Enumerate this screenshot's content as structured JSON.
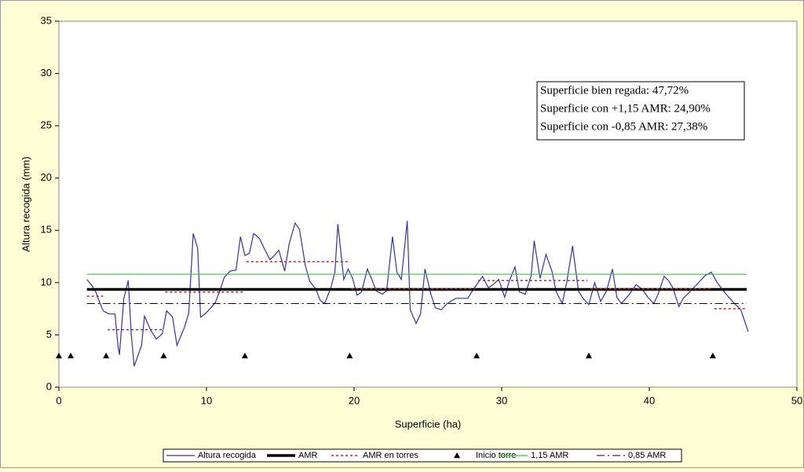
{
  "chart_data": {
    "type": "line",
    "xlabel": "Superficie (ha)",
    "ylabel": "Altura recogida (mm)",
    "xlim": [
      0,
      50
    ],
    "xticks": [
      0,
      10,
      20,
      30,
      40,
      50
    ],
    "ylim": [
      0,
      35
    ],
    "yticks": [
      0,
      5,
      10,
      15,
      20,
      25,
      30,
      35
    ],
    "grid": false,
    "legend": "bottom",
    "annotations": [
      "Superficie bien regada: 47,72%",
      "Superficie con +1,15 AMR: 24,90%",
      "Superficie con -0,85 AMR: 27,38%"
    ],
    "series": [
      {
        "name": "Altura recogida",
        "color": "#3333aa",
        "line_style": "solid",
        "line_width": 1.2,
        "x": [
          1.9,
          2.2,
          2.5,
          2.8,
          3.0,
          3.4,
          3.8,
          4.0,
          4.1,
          4.4,
          4.7,
          4.9,
          5.1,
          5.6,
          5.8,
          6.2,
          6.6,
          7.0,
          7.3,
          7.7,
          8.0,
          8.5,
          8.8,
          9.1,
          9.4,
          9.6,
          9.9,
          10.3,
          10.6,
          10.9,
          11.2,
          11.6,
          12.0,
          12.3,
          12.6,
          12.9,
          13.2,
          13.6,
          13.9,
          14.3,
          14.6,
          14.9,
          15.3,
          15.6,
          16.0,
          16.3,
          16.7,
          17.0,
          17.4,
          17.7,
          18.0,
          18.4,
          18.7,
          18.9,
          19.3,
          19.6,
          19.9,
          20.2,
          20.5,
          20.9,
          21.2,
          21.5,
          21.9,
          22.2,
          22.6,
          22.9,
          23.2,
          23.6,
          23.8,
          24.2,
          24.5,
          24.8,
          25.2,
          25.5,
          25.9,
          26.3,
          26.9,
          27.7,
          28.1,
          28.7,
          29.1,
          29.4,
          29.8,
          30.2,
          30.5,
          30.9,
          31.2,
          31.6,
          32.0,
          32.2,
          32.6,
          33.0,
          33.4,
          33.7,
          34.1,
          34.4,
          34.8,
          35.2,
          35.5,
          35.9,
          36.3,
          36.7,
          37.1,
          37.5,
          37.8,
          38.1,
          38.6,
          39.1,
          39.5,
          39.9,
          40.3,
          40.6,
          41.0,
          41.3,
          41.6,
          42.0,
          42.3,
          42.8,
          43.4,
          43.8,
          44.2,
          44.6,
          45.2,
          45.7,
          46.2,
          46.7
        ],
        "values": [
          10.3,
          9.8,
          9.1,
          8.0,
          7.3,
          7.0,
          7.0,
          4.0,
          3.1,
          8.5,
          10.2,
          5.1,
          2.0,
          4.0,
          6.8,
          5.5,
          4.6,
          5.1,
          7.3,
          6.7,
          4.0,
          5.7,
          7.1,
          14.7,
          13.3,
          6.7,
          7.0,
          7.6,
          8.1,
          9.2,
          10.5,
          11.1,
          11.2,
          14.4,
          12.6,
          12.8,
          14.7,
          14.2,
          13.3,
          12.2,
          12.6,
          13.1,
          11.1,
          13.7,
          15.7,
          15.1,
          11.6,
          10.1,
          9.4,
          8.3,
          8.0,
          9.4,
          11.0,
          15.6,
          10.3,
          11.3,
          10.4,
          8.8,
          9.1,
          11.3,
          10.3,
          9.2,
          8.9,
          9.2,
          14.4,
          11.0,
          10.3,
          15.9,
          7.4,
          6.1,
          7.0,
          11.3,
          8.9,
          7.6,
          7.4,
          8.0,
          8.5,
          8.5,
          9.4,
          10.6,
          9.5,
          9.8,
          10.3,
          8.6,
          10.1,
          11.5,
          9.1,
          8.9,
          10.7,
          14.0,
          10.4,
          12.7,
          11.1,
          9.1,
          8.0,
          10.0,
          13.5,
          9.2,
          8.5,
          7.9,
          10.0,
          8.2,
          9.2,
          11.3,
          8.6,
          8.0,
          8.8,
          9.8,
          9.4,
          8.6,
          8.0,
          8.9,
          10.6,
          10.2,
          9.5,
          7.7,
          8.5,
          9.2,
          10.1,
          10.7,
          11.0,
          10.0,
          8.9,
          8.1,
          7.4,
          5.3
        ]
      },
      {
        "name": "AMR",
        "color": "#000000",
        "line_style": "solid",
        "line_width": 3.5,
        "x": [
          1.9,
          46.6
        ],
        "values": [
          9.35,
          9.35
        ]
      },
      {
        "name": "AMR en torres",
        "color": "#cc2222",
        "line_style": "dotted",
        "line_width": 1.5,
        "x": [
          1.9,
          3.0,
          null,
          3.3,
          7.0,
          null,
          7.2,
          12.5,
          null,
          12.7,
          19.6,
          null,
          19.8,
          28.2,
          null,
          28.4,
          35.8,
          null,
          36.0,
          44.2,
          null,
          44.4,
          46.6
        ],
        "values": [
          8.7,
          8.7,
          null,
          5.5,
          5.5,
          null,
          9.1,
          9.1,
          null,
          12.0,
          12.0,
          null,
          9.4,
          9.4,
          null,
          10.2,
          10.2,
          null,
          9.4,
          9.4,
          null,
          7.5,
          7.5
        ]
      },
      {
        "name": "Inicio torre",
        "color": "#000000",
        "marker": "triangle",
        "x": [
          0,
          0.8,
          3.2,
          7.1,
          12.6,
          19.7,
          28.3,
          35.9,
          44.3
        ],
        "values": [
          3,
          3,
          3,
          3,
          3,
          3,
          3,
          3,
          3
        ]
      },
      {
        "name": "1,15 AMR",
        "color": "#33cc33",
        "line_style": "solid",
        "line_width": 1.2,
        "x": [
          1.9,
          46.6
        ],
        "values": [
          10.8,
          10.8
        ]
      },
      {
        "name": "0,85 AMR",
        "color": "#000000",
        "line_style": "dashdot",
        "line_width": 1,
        "x": [
          1.9,
          46.6
        ],
        "values": [
          8.0,
          8.0
        ]
      }
    ]
  }
}
